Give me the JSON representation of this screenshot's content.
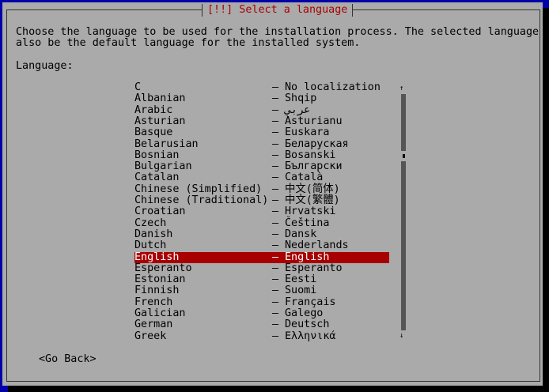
{
  "dialog": {
    "title": "[!!] Select a language",
    "description_line1": "Choose the language to be used for the installation process. The selected language will",
    "description_line2": "also be the default language for the installed system.",
    "list_label": "Language:",
    "go_back": "<Go Back>"
  },
  "languages": [
    {
      "name": "C",
      "native": "No localization"
    },
    {
      "name": "Albanian",
      "native": "Shqip"
    },
    {
      "name": "Arabic",
      "native": "عربي"
    },
    {
      "name": "Asturian",
      "native": "Asturianu"
    },
    {
      "name": "Basque",
      "native": "Euskara"
    },
    {
      "name": "Belarusian",
      "native": "Беларуская"
    },
    {
      "name": "Bosnian",
      "native": "Bosanski"
    },
    {
      "name": "Bulgarian",
      "native": "Български"
    },
    {
      "name": "Catalan",
      "native": "Català"
    },
    {
      "name": "Chinese (Simplified)",
      "native": "中文(简体)"
    },
    {
      "name": "Chinese (Traditional)",
      "native": "中文(繁體)"
    },
    {
      "name": "Croatian",
      "native": "Hrvatski"
    },
    {
      "name": "Czech",
      "native": "Čeština"
    },
    {
      "name": "Danish",
      "native": "Dansk"
    },
    {
      "name": "Dutch",
      "native": "Nederlands"
    },
    {
      "name": "English",
      "native": "English",
      "selected": true
    },
    {
      "name": "Esperanto",
      "native": "Esperanto"
    },
    {
      "name": "Estonian",
      "native": "Eesti"
    },
    {
      "name": "Finnish",
      "native": "Suomi"
    },
    {
      "name": "French",
      "native": "Français"
    },
    {
      "name": "Galician",
      "native": "Galego"
    },
    {
      "name": "German",
      "native": "Deutsch"
    },
    {
      "name": "Greek",
      "native": "Ελληνικά"
    }
  ],
  "separator": "–",
  "scrollbar": {
    "up": "↑",
    "down": "↓",
    "position_fraction": 0.25
  },
  "colors": {
    "background": "#0000a8",
    "dialog": "#aaaaaa",
    "title": "#a80000",
    "selection": "#a80000"
  }
}
